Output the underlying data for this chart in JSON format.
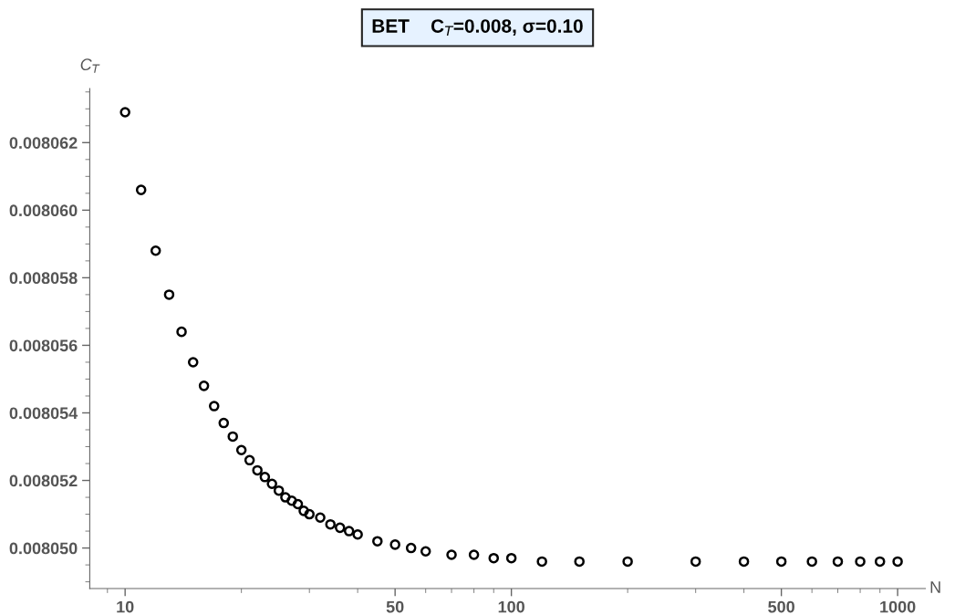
{
  "chart_data": {
    "type": "scatter",
    "title": "BET    C$_{T}$=0.008, σ=0.10",
    "xlabel": "N",
    "ylabel": "C$_{T}$",
    "log": "x",
    "marker": "circle",
    "grid": false,
    "legend": false,
    "xlim": [
      8.1,
      1180
    ],
    "xticks": [
      10,
      50,
      100,
      500,
      1000
    ],
    "ylim": [
      0.0080488,
      0.0080636
    ],
    "yticks": [
      {
        "value": 0.00805,
        "label": "0.008050"
      },
      0.008052,
      0.008054,
      0.008056,
      0.008058,
      {
        "value": 0.00806,
        "label": "0.008060"
      },
      0.008062
    ],
    "series": [
      {
        "color": "#000000",
        "x": [
          10,
          11,
          12,
          13,
          14,
          15,
          16,
          17,
          18,
          19,
          20,
          21,
          22,
          23,
          24,
          25,
          26,
          27,
          28,
          29,
          30,
          32,
          34,
          36,
          38,
          40,
          45,
          50,
          55,
          60,
          70,
          80,
          90,
          100,
          120,
          150,
          200,
          300,
          400,
          500,
          600,
          700,
          800,
          900,
          1000
        ],
        "values": [
          0.0080629,
          0.0080606,
          0.0080588,
          0.0080575,
          0.0080564,
          0.0080555,
          0.0080548,
          0.0080542,
          0.0080537,
          0.0080533,
          0.0080529,
          0.0080526,
          0.0080523,
          0.0080521,
          0.0080519,
          0.0080517,
          0.0080515,
          0.0080514,
          0.0080513,
          0.0080511,
          0.008051,
          0.0080509,
          0.0080507,
          0.0080506,
          0.0080505,
          0.0080504,
          0.0080502,
          0.0080501,
          0.00805,
          0.0080499,
          0.0080498,
          0.0080498,
          0.0080497,
          0.0080497,
          0.0080496,
          0.0080496,
          0.0080496,
          0.0080496,
          0.0080496,
          0.0080496,
          0.0080496,
          0.0080496,
          0.0080496,
          0.0080496,
          0.0080496
        ]
      }
    ]
  }
}
